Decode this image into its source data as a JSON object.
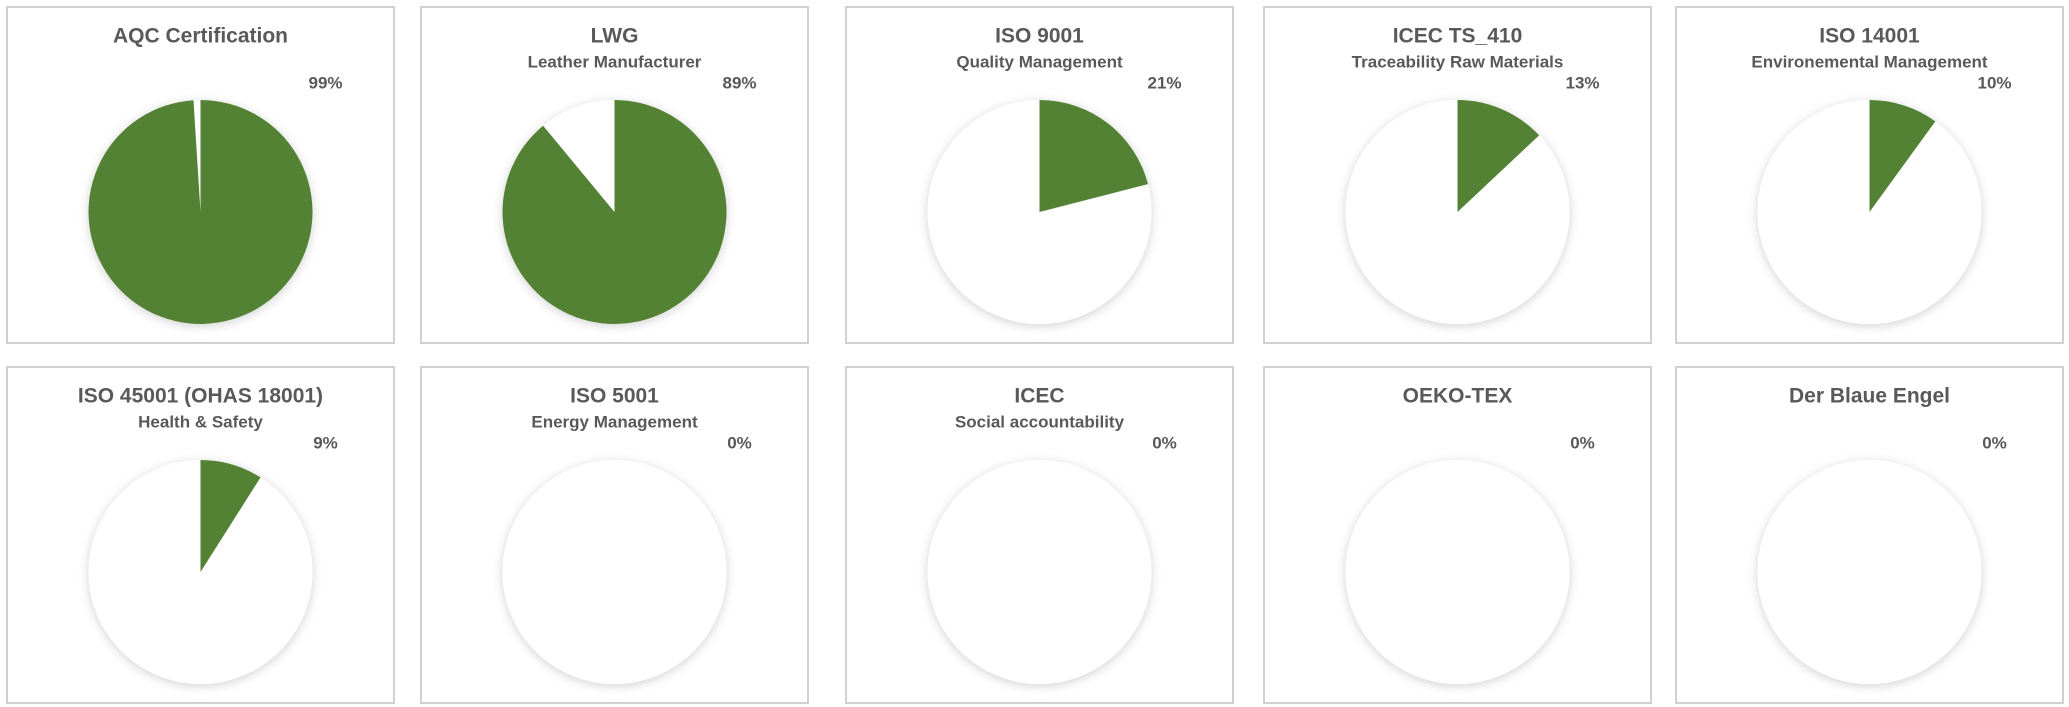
{
  "chart_data": [
    {
      "type": "pie",
      "title": "AQC Certification",
      "values": [
        99
      ],
      "value_labels": [
        "99%"
      ],
      "color": "#548235"
    },
    {
      "type": "pie",
      "title": "LWG",
      "subtitle": "Leather Manufacturer",
      "values": [
        89
      ],
      "value_labels": [
        "89%"
      ],
      "color": "#548235"
    },
    {
      "type": "pie",
      "title": "ISO 9001",
      "subtitle": "Quality Management",
      "values": [
        21
      ],
      "value_labels": [
        "21%"
      ],
      "color": "#548235"
    },
    {
      "type": "pie",
      "title": "ICEC TS_410",
      "subtitle": "Traceability Raw Materials",
      "values": [
        13
      ],
      "value_labels": [
        "13%"
      ],
      "color": "#548235"
    },
    {
      "type": "pie",
      "title": "ISO 14001",
      "subtitle": "Environemental  Management",
      "values": [
        10
      ],
      "value_labels": [
        "10%"
      ],
      "color": "#548235"
    },
    {
      "type": "pie",
      "title": "ISO 45001 (OHAS 18001)",
      "subtitle": "Health & Safety",
      "values": [
        9
      ],
      "value_labels": [
        "9%"
      ],
      "color": "#548235"
    },
    {
      "type": "pie",
      "title": "ISO 5001",
      "subtitle": "Energy Management",
      "values": [
        0
      ],
      "value_labels": [
        "0%"
      ],
      "color": "#548235"
    },
    {
      "type": "pie",
      "title": "ICEC",
      "subtitle": "Social accountability",
      "values": [
        0
      ],
      "value_labels": [
        "0%"
      ],
      "color": "#548235"
    },
    {
      "type": "pie",
      "title": "OEKO-TEX",
      "values": [
        0
      ],
      "value_labels": [
        "0%"
      ],
      "color": "#548235"
    },
    {
      "type": "pie",
      "title": "Der Blaue Engel",
      "values": [
        0
      ],
      "value_labels": [
        "0%"
      ],
      "color": "#548235"
    }
  ]
}
